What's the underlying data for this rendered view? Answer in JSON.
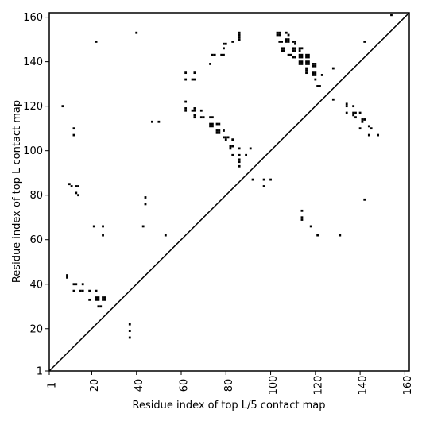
{
  "chart_data": {
    "type": "scatter",
    "subtype": "contact-map",
    "xlabel": "Residue index of top L/5 contact map",
    "ylabel": "Residue index of top L contact map",
    "xlim": [
      1,
      162
    ],
    "ylim": [
      1,
      162
    ],
    "x_ticks": [
      "1",
      "20",
      "40",
      "60",
      "80",
      "100",
      "120",
      "140",
      "160"
    ],
    "y_ticks": [
      "1",
      "20",
      "40",
      "60",
      "80",
      "100",
      "120",
      "140",
      "160"
    ],
    "tick_values": [
      1,
      20,
      40,
      60,
      80,
      100,
      120,
      140,
      160
    ],
    "grid": false,
    "diagonal": true,
    "marker_color": "#000000",
    "series": [
      {
        "values": [
          [
            7,
            120
          ],
          [
            12,
            110
          ],
          [
            12,
            107
          ],
          [
            10,
            85
          ],
          [
            11,
            84
          ],
          [
            13,
            84
          ],
          [
            14,
            84
          ],
          [
            13,
            81
          ],
          [
            14,
            80
          ],
          [
            9,
            44
          ],
          [
            9,
            43
          ],
          [
            12,
            40
          ],
          [
            13,
            40
          ],
          [
            16,
            40
          ],
          [
            12,
            37
          ],
          [
            15,
            37
          ],
          [
            16,
            37
          ],
          [
            19,
            37
          ],
          [
            22,
            37
          ],
          [
            19,
            33
          ],
          [
            22,
            34
          ],
          [
            23,
            34
          ],
          [
            22,
            33
          ],
          [
            23,
            33
          ],
          [
            25,
            34
          ],
          [
            26,
            34
          ],
          [
            25,
            33
          ],
          [
            26,
            33
          ],
          [
            23,
            30
          ],
          [
            24,
            30
          ],
          [
            21,
            66
          ],
          [
            25,
            66
          ],
          [
            25,
            62
          ],
          [
            22,
            149
          ],
          [
            40,
            153
          ],
          [
            37,
            22
          ],
          [
            37,
            19
          ],
          [
            37,
            16
          ],
          [
            43,
            66
          ],
          [
            44,
            79
          ],
          [
            44,
            76
          ],
          [
            47,
            113
          ],
          [
            50,
            113
          ],
          [
            53,
            62
          ],
          [
            62,
            135
          ],
          [
            62,
            132
          ],
          [
            65,
            132
          ],
          [
            66,
            132
          ],
          [
            66,
            135
          ],
          [
            62,
            122
          ],
          [
            62,
            119
          ],
          [
            62,
            118
          ],
          [
            65,
            118
          ],
          [
            66,
            119
          ],
          [
            66,
            118
          ],
          [
            66,
            116
          ],
          [
            66,
            115
          ],
          [
            69,
            118
          ],
          [
            69,
            115
          ],
          [
            70,
            115
          ],
          [
            73,
            115
          ],
          [
            74,
            115
          ],
          [
            73,
            112
          ],
          [
            74,
            112
          ],
          [
            73,
            111
          ],
          [
            74,
            111
          ],
          [
            76,
            112
          ],
          [
            77,
            112
          ],
          [
            76,
            109
          ],
          [
            77,
            109
          ],
          [
            76,
            108
          ],
          [
            77,
            108
          ],
          [
            79,
            109
          ],
          [
            79,
            106
          ],
          [
            80,
            106
          ],
          [
            81,
            106
          ],
          [
            80,
            105
          ],
          [
            83,
            105
          ],
          [
            82,
            102
          ],
          [
            83,
            102
          ],
          [
            82,
            101
          ],
          [
            83,
            98
          ],
          [
            86,
            101
          ],
          [
            86,
            98
          ],
          [
            86,
            96
          ],
          [
            86,
            95
          ],
          [
            86,
            93
          ],
          [
            89,
            98
          ],
          [
            91,
            101
          ],
          [
            92,
            87
          ],
          [
            97,
            87
          ],
          [
            100,
            87
          ],
          [
            97,
            84
          ],
          [
            74,
            143
          ],
          [
            75,
            143
          ],
          [
            73,
            139
          ],
          [
            78,
            143
          ],
          [
            79,
            143
          ],
          [
            79,
            146
          ],
          [
            79,
            148
          ],
          [
            80,
            148
          ],
          [
            83,
            149
          ],
          [
            86,
            153
          ],
          [
            86,
            152
          ],
          [
            86,
            151
          ],
          [
            86,
            150
          ],
          [
            103,
            153
          ],
          [
            104,
            153
          ],
          [
            103,
            152
          ],
          [
            104,
            152
          ],
          [
            104,
            149
          ],
          [
            105,
            149
          ],
          [
            107,
            153
          ],
          [
            108,
            152
          ],
          [
            107,
            150
          ],
          [
            108,
            150
          ],
          [
            107,
            149
          ],
          [
            108,
            149
          ],
          [
            110,
            149
          ],
          [
            111,
            149
          ],
          [
            111,
            148
          ],
          [
            105,
            146
          ],
          [
            106,
            146
          ],
          [
            105,
            145
          ],
          [
            106,
            145
          ],
          [
            110,
            146
          ],
          [
            111,
            146
          ],
          [
            110,
            145
          ],
          [
            111,
            145
          ],
          [
            113,
            146
          ],
          [
            114,
            146
          ],
          [
            113,
            145
          ],
          [
            108,
            143
          ],
          [
            109,
            143
          ],
          [
            110,
            142
          ],
          [
            111,
            142
          ],
          [
            113,
            143
          ],
          [
            114,
            143
          ],
          [
            113,
            142
          ],
          [
            114,
            142
          ],
          [
            116,
            143
          ],
          [
            117,
            143
          ],
          [
            116,
            142
          ],
          [
            117,
            142
          ],
          [
            113,
            140
          ],
          [
            114,
            140
          ],
          [
            113,
            139
          ],
          [
            114,
            139
          ],
          [
            116,
            140
          ],
          [
            117,
            140
          ],
          [
            116,
            139
          ],
          [
            117,
            139
          ],
          [
            119,
            139
          ],
          [
            120,
            139
          ],
          [
            119,
            138
          ],
          [
            120,
            138
          ],
          [
            116,
            137
          ],
          [
            116,
            136
          ],
          [
            116,
            135
          ],
          [
            119,
            135
          ],
          [
            120,
            135
          ],
          [
            119,
            134
          ],
          [
            120,
            134
          ],
          [
            120,
            132
          ],
          [
            121,
            129
          ],
          [
            122,
            129
          ],
          [
            123,
            134
          ],
          [
            128,
            137
          ],
          [
            128,
            123
          ],
          [
            134,
            121
          ],
          [
            134,
            120
          ],
          [
            134,
            117
          ],
          [
            137,
            120
          ],
          [
            137,
            117
          ],
          [
            137,
            116
          ],
          [
            138,
            117
          ],
          [
            138,
            115
          ],
          [
            140,
            117
          ],
          [
            141,
            114
          ],
          [
            141,
            113
          ],
          [
            142,
            114
          ],
          [
            140,
            110
          ],
          [
            144,
            111
          ],
          [
            144,
            107
          ],
          [
            145,
            110
          ],
          [
            148,
            107
          ],
          [
            142,
            149
          ],
          [
            142,
            78
          ],
          [
            114,
            73
          ],
          [
            114,
            70
          ],
          [
            114,
            69
          ],
          [
            118,
            66
          ],
          [
            121,
            62
          ],
          [
            131,
            62
          ],
          [
            154,
            161
          ]
        ]
      }
    ]
  }
}
